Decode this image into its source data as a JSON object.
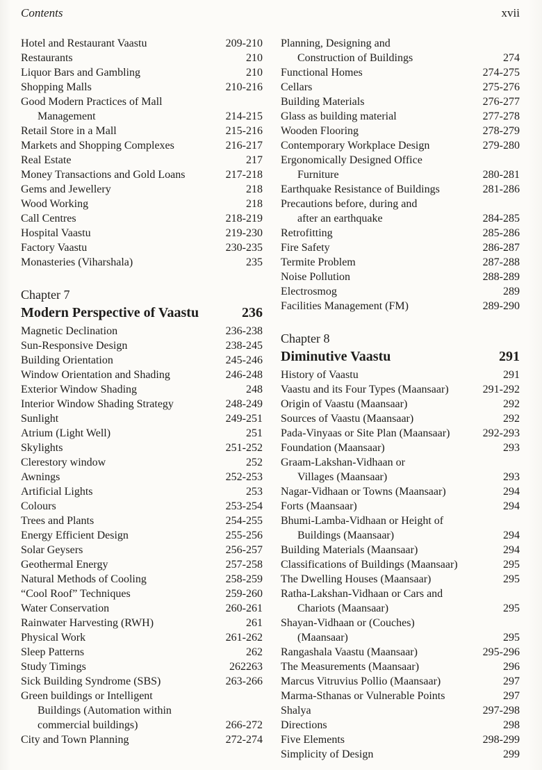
{
  "page": {
    "header_left": "Contents",
    "header_right": "xvii",
    "ink_color": "#1e1d1b",
    "background_color": "#fcfbf8"
  },
  "columns": {
    "left": [
      {
        "type": "entries",
        "items": [
          {
            "lines": [
              "Hotel and Restaurant Vaastu"
            ],
            "pages": "209-210"
          },
          {
            "lines": [
              "Restaurants"
            ],
            "pages": "210"
          },
          {
            "lines": [
              "Liquor Bars and Gambling"
            ],
            "pages": "210"
          },
          {
            "lines": [
              "Shopping Malls"
            ],
            "pages": "210-216"
          },
          {
            "lines": [
              "Good Modern Practices of Mall",
              "Management"
            ],
            "pages": "214-215"
          },
          {
            "lines": [
              "Retail Store in a Mall"
            ],
            "pages": "215-216"
          },
          {
            "lines": [
              "Markets and Shopping Complexes"
            ],
            "pages": "216-217"
          },
          {
            "lines": [
              "Real Estate"
            ],
            "pages": "217"
          },
          {
            "lines": [
              "Money Transactions and Gold Loans"
            ],
            "pages": "217-218"
          },
          {
            "lines": [
              "Gems and Jewellery"
            ],
            "pages": "218"
          },
          {
            "lines": [
              "Wood Working"
            ],
            "pages": "218"
          },
          {
            "lines": [
              "Call Centres"
            ],
            "pages": "218-219"
          },
          {
            "lines": [
              "Hospital Vaastu"
            ],
            "pages": "219-230"
          },
          {
            "lines": [
              "Factory Vaastu"
            ],
            "pages": "230-235"
          },
          {
            "lines": [
              "Monasteries (Viharshala)"
            ],
            "pages": "235"
          }
        ]
      },
      {
        "type": "chapter",
        "label": "Chapter 7",
        "title": "Modern Perspective of Vaastu",
        "pages": "236"
      },
      {
        "type": "entries",
        "items": [
          {
            "lines": [
              "Magnetic Declination"
            ],
            "pages": "236-238"
          },
          {
            "lines": [
              "Sun-Responsive Design"
            ],
            "pages": "238-245"
          },
          {
            "lines": [
              "Building Orientation"
            ],
            "pages": "245-246"
          },
          {
            "lines": [
              "Window Orientation and Shading"
            ],
            "pages": "246-248"
          },
          {
            "lines": [
              "Exterior Window Shading"
            ],
            "pages": "248"
          },
          {
            "lines": [
              "Interior Window Shading Strategy"
            ],
            "pages": "248-249"
          },
          {
            "lines": [
              "Sunlight"
            ],
            "pages": "249-251"
          },
          {
            "lines": [
              "Atrium (Light Well)"
            ],
            "pages": "251"
          },
          {
            "lines": [
              "Skylights"
            ],
            "pages": "251-252"
          },
          {
            "lines": [
              "Clerestory window"
            ],
            "pages": "252"
          },
          {
            "lines": [
              "Awnings"
            ],
            "pages": "252-253"
          },
          {
            "lines": [
              "Artificial Lights"
            ],
            "pages": "253"
          },
          {
            "lines": [
              "Colours"
            ],
            "pages": "253-254"
          },
          {
            "lines": [
              "Trees and Plants"
            ],
            "pages": "254-255"
          },
          {
            "lines": [
              "Energy Efficient Design"
            ],
            "pages": "255-256"
          },
          {
            "lines": [
              "Solar Geysers"
            ],
            "pages": "256-257"
          },
          {
            "lines": [
              "Geothermal Energy"
            ],
            "pages": "257-258"
          },
          {
            "lines": [
              "Natural Methods of Cooling"
            ],
            "pages": "258-259"
          },
          {
            "lines": [
              "“Cool Roof” Techniques"
            ],
            "pages": "259-260"
          },
          {
            "lines": [
              "Water Conservation"
            ],
            "pages": "260-261"
          },
          {
            "lines": [
              "Rainwater Harvesting (RWH)"
            ],
            "pages": "261"
          },
          {
            "lines": [
              "Physical Work"
            ],
            "pages": "261-262"
          },
          {
            "lines": [
              "Sleep Patterns"
            ],
            "pages": "262"
          },
          {
            "lines": [
              "Study Timings"
            ],
            "pages": "262263"
          },
          {
            "lines": [
              "Sick Building Syndrome (SBS)"
            ],
            "pages": "263-266"
          },
          {
            "lines": [
              "Green buildings or Intelligent",
              "Buildings (Automation within",
              "commercial buildings)"
            ],
            "pages": "266-272"
          },
          {
            "lines": [
              "City and Town Planning"
            ],
            "pages": "272-274"
          }
        ]
      }
    ],
    "right": [
      {
        "type": "entries",
        "items": [
          {
            "lines": [
              "Planning, Designing and",
              "Construction of Buildings"
            ],
            "pages": "274"
          },
          {
            "lines": [
              "Functional Homes"
            ],
            "pages": "274-275"
          },
          {
            "lines": [
              "Cellars"
            ],
            "pages": "275-276"
          },
          {
            "lines": [
              "Building Materials"
            ],
            "pages": "276-277"
          },
          {
            "lines": [
              "Glass as building material"
            ],
            "pages": "277-278"
          },
          {
            "lines": [
              "Wooden Flooring"
            ],
            "pages": "278-279"
          },
          {
            "lines": [
              "Contemporary Workplace Design"
            ],
            "pages": "279-280"
          },
          {
            "lines": [
              "Ergonomically Designed Office",
              "Furniture"
            ],
            "pages": "280-281"
          },
          {
            "lines": [
              "Earthquake Resistance of Buildings"
            ],
            "pages": "281-286"
          },
          {
            "lines": [
              "Precautions before, during and",
              "after an earthquake"
            ],
            "pages": "284-285"
          },
          {
            "lines": [
              "Retrofitting"
            ],
            "pages": "285-286"
          },
          {
            "lines": [
              "Fire Safety"
            ],
            "pages": "286-287"
          },
          {
            "lines": [
              "Termite Problem"
            ],
            "pages": "287-288"
          },
          {
            "lines": [
              "Noise Pollution"
            ],
            "pages": "288-289"
          },
          {
            "lines": [
              "Electrosmog"
            ],
            "pages": "289"
          },
          {
            "lines": [
              "Facilities Management (FM)"
            ],
            "pages": "289-290"
          }
        ]
      },
      {
        "type": "chapter",
        "label": "Chapter 8",
        "title": "Diminutive Vaastu",
        "pages": "291"
      },
      {
        "type": "entries",
        "items": [
          {
            "lines": [
              "History of Vaastu"
            ],
            "pages": "291"
          },
          {
            "lines": [
              "Vaastu and its Four Types (Maansaar)"
            ],
            "pages": "291-292"
          },
          {
            "lines": [
              "Origin of Vaastu (Maansaar)"
            ],
            "pages": "292"
          },
          {
            "lines": [
              "Sources of Vaastu (Maansaar)"
            ],
            "pages": "292"
          },
          {
            "lines": [
              "Pada-Vinyaas or Site Plan (Maansaar)"
            ],
            "pages": "292-293"
          },
          {
            "lines": [
              "Foundation (Maansaar)"
            ],
            "pages": "293"
          },
          {
            "lines": [
              "Graam-Lakshan-Vidhaan or",
              "Villages (Maansaar)"
            ],
            "pages": "293"
          },
          {
            "lines": [
              "Nagar-Vidhaan or Towns (Maansaar)"
            ],
            "pages": "294"
          },
          {
            "lines": [
              "Forts (Maansaar)"
            ],
            "pages": "294"
          },
          {
            "lines": [
              "Bhumi-Lamba-Vidhaan or Height of",
              "Buildings (Maansaar)"
            ],
            "pages": "294"
          },
          {
            "lines": [
              "Building Materials (Maansaar)"
            ],
            "pages": "294"
          },
          {
            "lines": [
              "Classifications of Buildings (Maansaar)"
            ],
            "pages": "295"
          },
          {
            "lines": [
              "The Dwelling Houses (Maansaar)"
            ],
            "pages": "295"
          },
          {
            "lines": [
              "Ratha-Lakshan-Vidhaan or Cars and",
              "Chariots (Maansaar)"
            ],
            "pages": "295"
          },
          {
            "lines": [
              "Shayan-Vidhaan or (Couches)",
              "(Maansaar)"
            ],
            "pages": "295"
          },
          {
            "lines": [
              "Rangashala Vaastu (Maansaar)"
            ],
            "pages": "295-296"
          },
          {
            "lines": [
              "The Measurements (Maansaar)"
            ],
            "pages": "296"
          },
          {
            "lines": [
              "Marcus Vitruvius Pollio (Maansaar)"
            ],
            "pages": "297"
          },
          {
            "lines": [
              "Marma-Sthanas or Vulnerable Points"
            ],
            "pages": "297"
          },
          {
            "lines": [
              "Shalya"
            ],
            "pages": "297-298"
          },
          {
            "lines": [
              "Directions"
            ],
            "pages": "298"
          },
          {
            "lines": [
              "Five Elements"
            ],
            "pages": "298-299"
          },
          {
            "lines": [
              "Simplicity of Design"
            ],
            "pages": "299"
          }
        ]
      }
    ]
  }
}
